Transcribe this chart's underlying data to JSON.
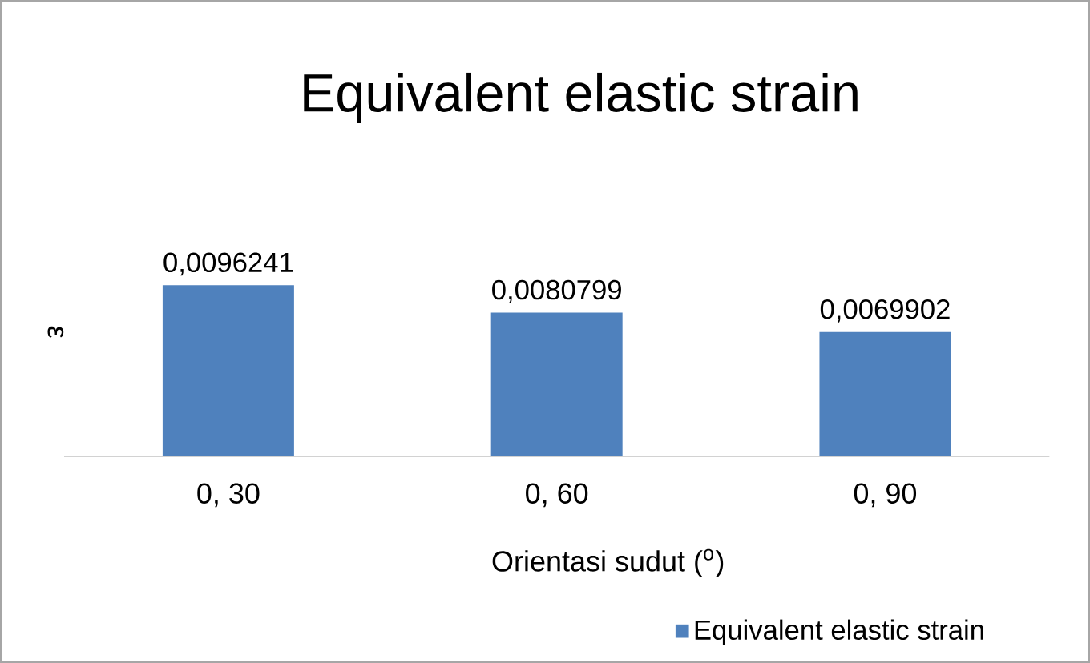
{
  "chart_data": {
    "type": "bar",
    "title": "Equivalent elastic strain",
    "xlabel": "Orientasi sudut ($^{o}$)",
    "ylabel": "ε",
    "categories": [
      "0, 30",
      "0, 60",
      "0, 90"
    ],
    "series": [
      {
        "name": "Equivalent elastic strain",
        "color": "#4f81bd",
        "values": [
          0.0096241,
          0.0080799,
          0.0069902
        ],
        "value_labels": [
          "0,0096241",
          "0,0080799",
          "0,0069902"
        ]
      }
    ],
    "legend": "bottom"
  }
}
